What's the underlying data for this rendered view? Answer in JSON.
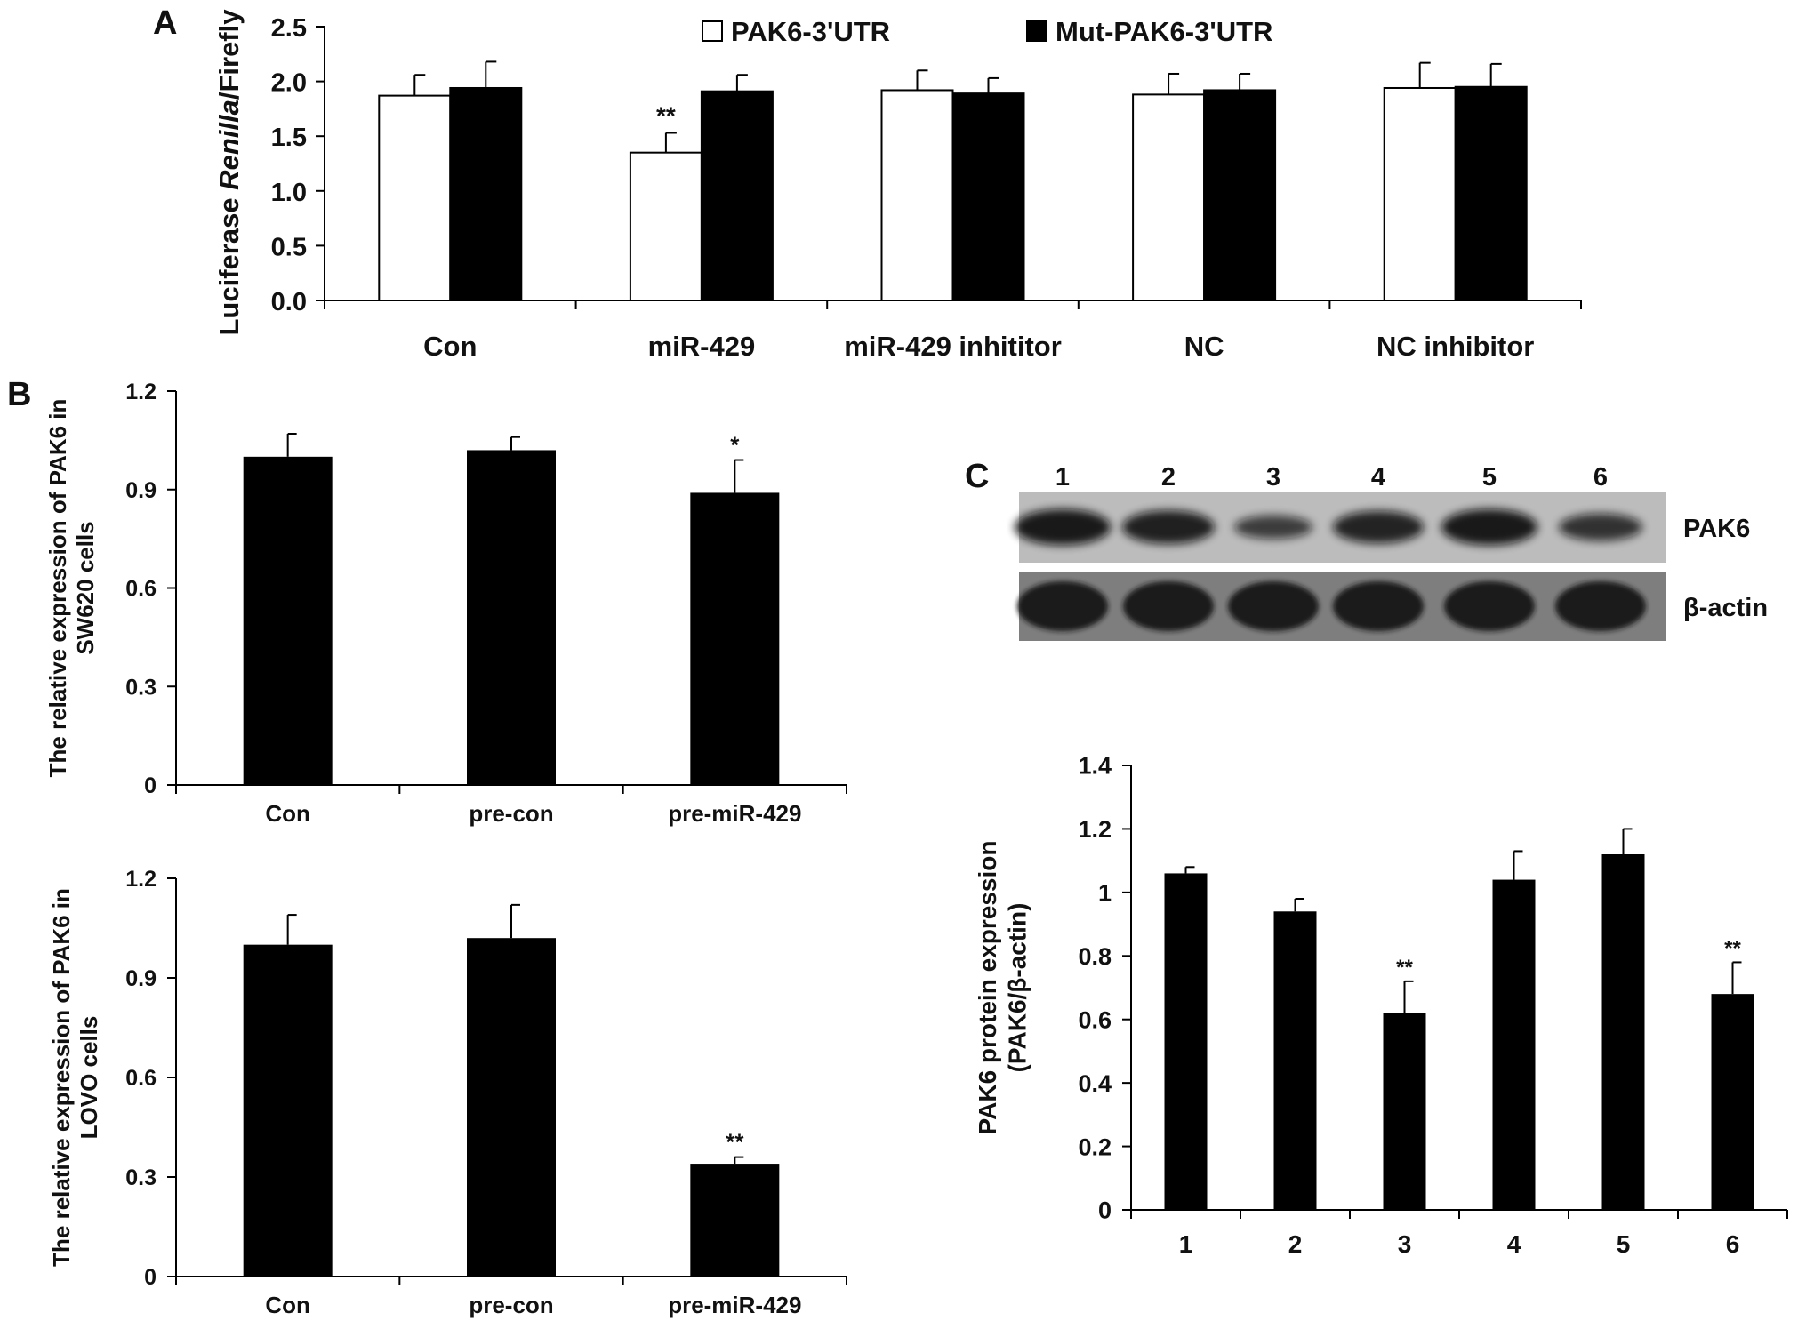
{
  "panels": {
    "A": {
      "letter": "A"
    },
    "B": {
      "letter": "B"
    },
    "C": {
      "letter": "C"
    }
  },
  "chart_data": [
    {
      "id": "A",
      "type": "bar",
      "ylabel_parts": [
        "Luciferase ",
        "Renilla",
        "/Firefly"
      ],
      "categories": [
        "Con",
        "miR-429",
        "miR-429 inhititor",
        "NC",
        "NC inhibitor"
      ],
      "series": [
        {
          "name": "PAK6-3'UTR",
          "color": "#ffffff",
          "values": [
            1.87,
            1.35,
            1.92,
            1.88,
            1.94
          ],
          "errors": [
            0.19,
            0.18,
            0.18,
            0.19,
            0.23
          ]
        },
        {
          "name": "Mut-PAK6-3'UTR",
          "color": "#000000",
          "values": [
            1.94,
            1.91,
            1.89,
            1.92,
            1.95
          ],
          "errors": [
            0.24,
            0.15,
            0.14,
            0.15,
            0.21
          ]
        }
      ],
      "annotations": [
        {
          "category": "miR-429",
          "series": 0,
          "text": "**"
        }
      ],
      "ylim": [
        0,
        2.5
      ],
      "yticks": [
        0,
        0.5,
        1.0,
        1.5,
        2.0,
        2.5
      ],
      "ytick_labels": [
        "0.0",
        "0.5",
        "1.0",
        "1.5",
        "2.0",
        "2.5"
      ],
      "legend": "top"
    },
    {
      "id": "B-top",
      "type": "bar",
      "ylabel_lines": [
        "The relative expression of PAK6 in",
        "SW620 cells"
      ],
      "categories": [
        "Con",
        "pre-con",
        "pre-miR-429"
      ],
      "values": [
        1.0,
        1.02,
        0.89
      ],
      "errors": [
        0.07,
        0.04,
        0.1
      ],
      "annotations": [
        "",
        "",
        "*"
      ],
      "ylim": [
        0,
        1.2
      ],
      "yticks": [
        0,
        0.3,
        0.6,
        0.9,
        1.2
      ],
      "ytick_labels": [
        "0",
        "0.3",
        "0.6",
        "0.9",
        "1.2"
      ]
    },
    {
      "id": "B-bottom",
      "type": "bar",
      "ylabel_lines": [
        "The relative expression of PAK6 in",
        "LOVO cells"
      ],
      "categories": [
        "Con",
        "pre-con",
        "pre-miR-429"
      ],
      "values": [
        1.0,
        1.02,
        0.34
      ],
      "errors": [
        0.09,
        0.1,
        0.02
      ],
      "annotations": [
        "",
        "",
        "**"
      ],
      "ylim": [
        0,
        1.2
      ],
      "yticks": [
        0,
        0.3,
        0.6,
        0.9,
        1.2
      ],
      "ytick_labels": [
        "0",
        "0.3",
        "0.6",
        "0.9",
        "1.2"
      ]
    },
    {
      "id": "C",
      "type": "bar",
      "ylabel_lines": [
        "PAK6 protein expression",
        "(PAK6/β-actin)"
      ],
      "categories": [
        "1",
        "2",
        "3",
        "4",
        "5",
        "6"
      ],
      "values": [
        1.06,
        0.94,
        0.62,
        1.04,
        1.12,
        0.68
      ],
      "errors": [
        0.02,
        0.04,
        0.1,
        0.09,
        0.08,
        0.1
      ],
      "annotations": [
        "",
        "",
        "**",
        "",
        "",
        "**"
      ],
      "ylim": [
        0,
        1.4
      ],
      "yticks": [
        0,
        0.2,
        0.4,
        0.6,
        0.8,
        1.0,
        1.2,
        1.4
      ],
      "ytick_labels": [
        "0",
        "0.2",
        "0.4",
        "0.6",
        "0.8",
        "1",
        "1.2",
        "1.4"
      ]
    }
  ],
  "blot": {
    "lanes": [
      "1",
      "2",
      "3",
      "4",
      "5",
      "6"
    ],
    "rows": [
      {
        "label": "PAK6",
        "band_intensity": [
          0.95,
          0.85,
          0.45,
          0.8,
          0.95,
          0.6
        ]
      },
      {
        "label": "β-actin",
        "band_intensity": [
          1.0,
          1.0,
          1.0,
          1.0,
          1.0,
          1.0
        ]
      }
    ]
  }
}
